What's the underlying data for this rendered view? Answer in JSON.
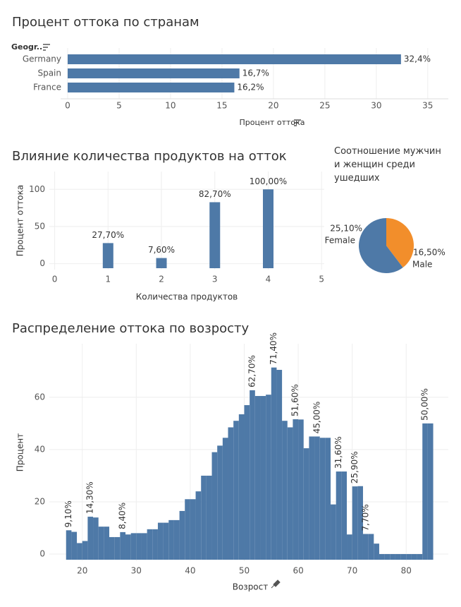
{
  "chart_data": [
    {
      "type": "bar",
      "orientation": "horizontal",
      "title": "Процент оттока по странам",
      "y_label": "Geogr..",
      "x_label": "Процент оттока",
      "categories": [
        "Germany",
        "Spain",
        "France"
      ],
      "values": [
        32.4,
        16.7,
        16.2
      ],
      "value_labels": [
        "32,4%",
        "16,7%",
        "16,2%"
      ],
      "color": "#4e79a7",
      "xlim": [
        0,
        37
      ],
      "xticks": [
        0,
        5,
        10,
        15,
        20,
        25,
        30,
        35
      ],
      "grid": true
    },
    {
      "type": "bar",
      "orientation": "vertical",
      "title": "Влияние количества продуктов на отток",
      "x_label": "Количества продуктов",
      "y_label": "Процент оттока",
      "x": [
        1,
        2,
        3,
        4
      ],
      "values": [
        27.7,
        7.6,
        82.7,
        100
      ],
      "value_labels": [
        "27,70%",
        "7,60%",
        "82,70%",
        "100,00%"
      ],
      "color": "#4e79a7",
      "xlim": [
        -0.1,
        5.05
      ],
      "xticks": [
        0,
        1,
        2,
        3,
        4,
        5
      ],
      "ylim": [
        -8,
        124
      ],
      "yticks": [
        0,
        50,
        100
      ],
      "grid": true
    },
    {
      "type": "pie",
      "title": "Соотношение мужчин и женщин среди ушедших",
      "categories": [
        "Male",
        "Female"
      ],
      "values": [
        16.5,
        25.1
      ],
      "value_labels": [
        "16,50%",
        "25,10%"
      ],
      "colors": [
        "#f28e2b",
        "#4e79a7"
      ]
    },
    {
      "type": "histogram",
      "title": "Распределение оттока по возросту",
      "x_label": "Возрост",
      "y_label": "Процент",
      "color": "#4e79a7",
      "bins": [
        17,
        18,
        19,
        20,
        21,
        22,
        23,
        24,
        25,
        26,
        27,
        28,
        29,
        30,
        31,
        32,
        33,
        34,
        35,
        36,
        37,
        38,
        39,
        40,
        41,
        42,
        43,
        44,
        45,
        46,
        47,
        48,
        49,
        50,
        51,
        52,
        53,
        54,
        55,
        56,
        57,
        58,
        59,
        60,
        61,
        62,
        63,
        64,
        65,
        66,
        67,
        68,
        69,
        70,
        71,
        72,
        73,
        74,
        75,
        76,
        77,
        78,
        79,
        80,
        81,
        82,
        83,
        84,
        85
      ],
      "values": [
        9.1,
        8.5,
        4.2,
        5,
        14.3,
        14,
        10.5,
        10.5,
        6.5,
        6.5,
        8.4,
        7.5,
        8,
        8,
        8,
        9.5,
        9.5,
        12,
        12,
        13,
        13,
        16.5,
        21,
        21,
        24,
        30,
        30,
        39,
        41.5,
        44.5,
        48.5,
        51,
        53.5,
        57,
        62.7,
        60.5,
        60.5,
        61,
        71.4,
        70.5,
        51,
        48.5,
        51.6,
        51.5,
        40.5,
        45,
        45,
        44.5,
        44.5,
        19,
        31.6,
        31.6,
        7.5,
        25.9,
        26,
        7.7,
        7.7,
        4,
        0,
        0,
        0,
        0,
        0,
        0,
        0,
        0,
        50,
        50
      ],
      "value_labels": [
        "9,10%",
        null,
        null,
        null,
        "14,30%",
        null,
        null,
        null,
        null,
        null,
        "8,40%",
        null,
        null,
        null,
        null,
        null,
        null,
        null,
        null,
        null,
        null,
        null,
        null,
        null,
        null,
        null,
        null,
        null,
        null,
        null,
        null,
        null,
        null,
        null,
        "62,70%",
        null,
        null,
        null,
        "71,40%",
        null,
        null,
        null,
        "51,60%",
        null,
        null,
        null,
        "45,00%",
        null,
        null,
        null,
        "31,60%",
        null,
        null,
        "25,90%",
        null,
        "7,70%",
        null,
        null,
        null,
        null,
        null,
        null,
        null,
        null,
        null,
        null,
        "50,00%",
        null
      ],
      "xlim": [
        13.9,
        87.8
      ],
      "xticks": [
        20,
        30,
        40,
        50,
        60,
        70,
        80
      ],
      "ylim": [
        -2.7,
        80.5
      ],
      "yticks": [
        0,
        20,
        40,
        60
      ],
      "grid": true
    }
  ]
}
